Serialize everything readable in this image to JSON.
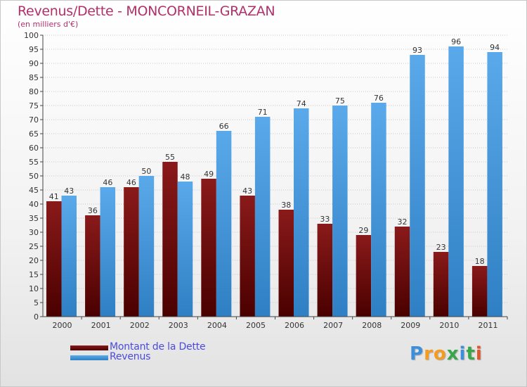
{
  "header": {
    "title": "Revenus/Dette - MONCORNEIL-GRAZAN",
    "subtitle": "(en milliers d'€)"
  },
  "legend": {
    "items": [
      {
        "label": "Montant de la Dette",
        "color": "#6b0a0a"
      },
      {
        "label": "Revenus",
        "color": "#3f97dc"
      }
    ]
  },
  "logo": {
    "letters": [
      {
        "ch": "P",
        "color": "#3d8fd9"
      },
      {
        "ch": "r",
        "color": "#f39c1f"
      },
      {
        "ch": "o",
        "color": "#f39c1f"
      },
      {
        "ch": "x",
        "color": "#3aa64a"
      },
      {
        "ch": "i",
        "color": "#3d8fd9"
      },
      {
        "ch": "t",
        "color": "#3aa64a"
      },
      {
        "ch": "i",
        "color": "#e2542b"
      }
    ]
  },
  "chart_data": {
    "type": "bar",
    "title": "Revenus/Dette - MONCORNEIL-GRAZAN",
    "subtitle": "(en milliers d'€)",
    "categories": [
      "2000",
      "2001",
      "2002",
      "2003",
      "2004",
      "2005",
      "2006",
      "2007",
      "2008",
      "2009",
      "2010",
      "2011"
    ],
    "series": [
      {
        "name": "Montant de la Dette",
        "color": "#6b0a0a",
        "values": [
          41,
          36,
          46,
          55,
          49,
          43,
          38,
          33,
          29,
          32,
          23,
          18
        ]
      },
      {
        "name": "Revenus",
        "color": "#3f97dc",
        "values": [
          43,
          46,
          50,
          48,
          66,
          71,
          74,
          75,
          76,
          93,
          96,
          94
        ]
      }
    ],
    "ylim": [
      0,
      100
    ],
    "ytick_step": 5,
    "grid": true,
    "legend_position": "bottom-left"
  }
}
